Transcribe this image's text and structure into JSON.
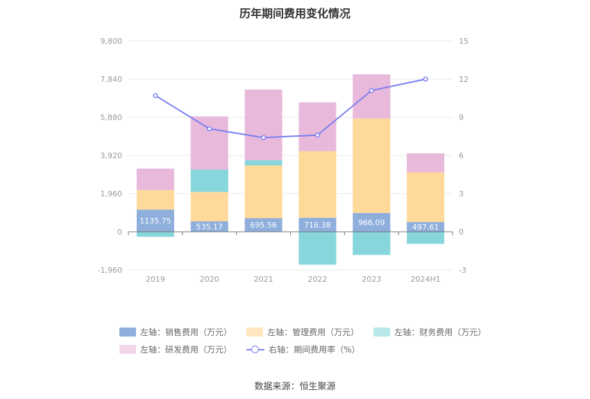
{
  "chart_data": {
    "type": "bar",
    "title": "历年期间费用变化情况",
    "categories": [
      "2019",
      "2020",
      "2021",
      "2022",
      "2023",
      "2024H1"
    ],
    "left_axis": {
      "min": -1960,
      "max": 9800,
      "ticks": [
        "9,800",
        "7,840",
        "5,880",
        "3,920",
        "1,960",
        "0",
        "-1,960"
      ]
    },
    "right_axis": {
      "min": -3,
      "max": 15,
      "ticks": [
        "15",
        "12",
        "9",
        "6",
        "3",
        "0",
        "-3"
      ]
    },
    "series": [
      {
        "name": "左轴：销售费用（万元）",
        "color": "#8eaedc",
        "values": [
          1135.75,
          535.17,
          695.56,
          716.38,
          966.09,
          497.61
        ]
      },
      {
        "name": "左轴：管理费用（万元）",
        "color": "#ffd99a",
        "values": [
          1010,
          1510,
          2710,
          3420,
          4850,
          2550
        ]
      },
      {
        "name": "左轴：财务费用（万元）",
        "color": "#86d6dc",
        "values": [
          -260,
          1150,
          270,
          -1690,
          -1190,
          -620
        ]
      },
      {
        "name": "左轴：研发费用（万元）",
        "color": "#e8b9da",
        "values": [
          1100,
          2730,
          3630,
          2510,
          2270,
          980
        ]
      }
    ],
    "line_series": {
      "name": "右轴：期间费用率（%）",
      "color": "#7b7ff0",
      "values": [
        10.7,
        8.1,
        7.4,
        7.6,
        11.1,
        12.0
      ]
    },
    "bar_labels": [
      "1135.75",
      "535.17",
      "695.56",
      "716.38",
      "966.09",
      "497.61"
    ],
    "legend_placement": "bottom",
    "legend_colors": [
      "#8eaedc",
      "#ffe6bf",
      "#b9e8ea",
      "#f3d6ea"
    ],
    "source": "数据来源：恒生聚源"
  }
}
